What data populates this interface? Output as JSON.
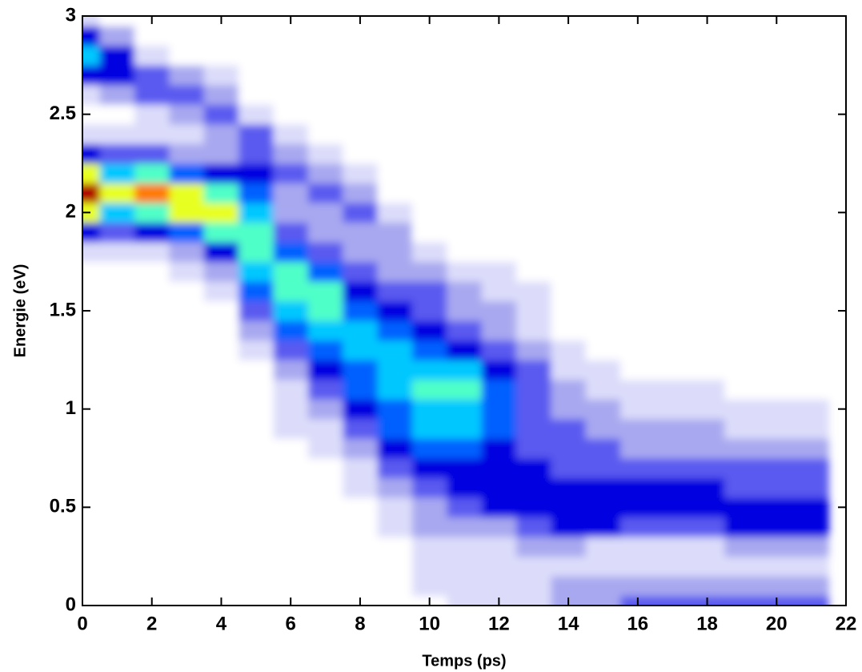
{
  "chart_data": {
    "type": "contour",
    "xlabel": "Temps (ps)",
    "ylabel": "Energie (eV)",
    "xlim": [
      0,
      22
    ],
    "xticks": [
      0,
      2,
      4,
      6,
      8,
      10,
      12,
      14,
      16,
      18,
      20,
      22
    ],
    "ylim": [
      0,
      3
    ],
    "yticks": [
      0,
      0.5,
      1,
      1.5,
      2,
      2.5,
      3
    ],
    "colorscale": [
      "#ffffff",
      "#dcdcfa",
      "#a8a8f0",
      "#5a5af0",
      "#0000e0",
      "#0060ff",
      "#00c8ff",
      "#50ffc8",
      "#e8ff20",
      "#ff7a00",
      "#b00000"
    ],
    "x": [
      0,
      1,
      2,
      3,
      4,
      5,
      6,
      7,
      8,
      9,
      10,
      11,
      12,
      13,
      14,
      15,
      16,
      17,
      18,
      19,
      20,
      21
    ],
    "y": [
      0,
      0.1,
      0.2,
      0.3,
      0.4,
      0.5,
      0.6,
      0.7,
      0.8,
      0.9,
      1,
      1.1,
      1.2,
      1.3,
      1.4,
      1.5,
      1.6,
      1.7,
      1.8,
      1.9,
      2,
      2.1,
      2.2,
      2.3,
      2.4,
      2.5,
      2.6,
      2.7,
      2.8,
      2.9,
      3
    ],
    "z": [
      [
        0,
        0,
        0,
        0,
        0,
        0,
        0,
        0,
        0,
        0,
        0,
        0,
        0,
        0,
        0,
        0,
        0,
        0,
        1,
        4,
        8,
        10,
        8,
        4,
        1,
        0,
        1,
        4,
        6,
        4,
        1
      ],
      [
        0,
        0,
        0,
        0,
        0,
        0,
        0,
        0,
        0,
        0,
        0,
        0,
        0,
        0,
        0,
        0,
        0,
        0,
        1,
        3,
        6,
        8,
        6,
        3,
        1,
        0,
        2,
        4,
        4,
        2,
        0
      ],
      [
        0,
        0,
        0,
        0,
        0,
        0,
        0,
        0,
        0,
        0,
        0,
        0,
        0,
        0,
        0,
        0,
        0,
        0,
        1,
        4,
        7,
        9,
        7,
        3,
        1,
        1,
        3,
        3,
        1,
        0,
        0
      ],
      [
        0,
        0,
        0,
        0,
        0,
        0,
        0,
        0,
        0,
        0,
        0,
        0,
        0,
        0,
        0,
        0,
        0,
        1,
        2,
        5,
        8,
        8,
        5,
        2,
        1,
        2,
        3,
        2,
        0,
        0,
        0
      ],
      [
        0,
        0,
        0,
        0,
        0,
        0,
        0,
        0,
        0,
        0,
        0,
        0,
        0,
        0,
        0,
        0,
        1,
        2,
        4,
        7,
        8,
        7,
        4,
        2,
        2,
        3,
        2,
        1,
        0,
        0,
        0
      ],
      [
        0,
        0,
        0,
        0,
        0,
        0,
        0,
        0,
        0,
        0,
        0,
        0,
        0,
        1,
        2,
        3,
        5,
        6,
        7,
        7,
        6,
        5,
        4,
        3,
        3,
        1,
        0,
        0,
        0,
        0,
        0
      ],
      [
        0,
        0,
        0,
        0,
        0,
        0,
        0,
        0,
        0,
        1,
        1,
        1,
        2,
        3,
        5,
        6,
        7,
        7,
        5,
        3,
        2,
        2,
        3,
        2,
        1,
        0,
        0,
        0,
        0,
        0,
        0
      ],
      [
        0,
        0,
        0,
        0,
        0,
        0,
        0,
        0,
        1,
        1,
        2,
        3,
        4,
        5,
        6,
        7,
        7,
        5,
        3,
        2,
        2,
        3,
        2,
        1,
        0,
        0,
        0,
        0,
        0,
        0,
        0
      ],
      [
        0,
        0,
        0,
        0,
        0,
        0,
        1,
        1,
        2,
        3,
        4,
        5,
        5,
        6,
        6,
        5,
        4,
        3,
        2,
        2,
        3,
        2,
        1,
        0,
        0,
        0,
        0,
        0,
        0,
        0,
        0
      ],
      [
        0,
        0,
        0,
        0,
        1,
        1,
        2,
        3,
        4,
        5,
        5,
        6,
        6,
        6,
        5,
        4,
        3,
        2,
        2,
        2,
        1,
        0,
        0,
        0,
        0,
        0,
        0,
        0,
        0,
        0,
        0
      ],
      [
        0,
        1,
        1,
        1,
        2,
        2,
        3,
        4,
        5,
        6,
        6,
        7,
        6,
        5,
        4,
        3,
        3,
        2,
        1,
        0,
        0,
        0,
        0,
        0,
        0,
        0,
        0,
        0,
        0,
        0,
        0
      ],
      [
        1,
        1,
        1,
        1,
        2,
        3,
        4,
        4,
        5,
        6,
        6,
        7,
        6,
        4,
        3,
        2,
        2,
        1,
        0,
        0,
        0,
        0,
        0,
        0,
        0,
        0,
        0,
        0,
        0,
        0,
        0
      ],
      [
        1,
        1,
        1,
        1,
        2,
        4,
        4,
        4,
        4,
        5,
        5,
        5,
        4,
        3,
        2,
        2,
        1,
        1,
        0,
        0,
        0,
        0,
        0,
        0,
        0,
        0,
        0,
        0,
        0,
        0,
        0
      ],
      [
        1,
        1,
        1,
        2,
        3,
        4,
        4,
        4,
        3,
        3,
        3,
        3,
        3,
        2,
        1,
        1,
        1,
        0,
        0,
        0,
        0,
        0,
        0,
        0,
        0,
        0,
        0,
        0,
        0,
        0,
        0
      ],
      [
        2,
        2,
        1,
        2,
        4,
        4,
        4,
        3,
        3,
        3,
        2,
        2,
        1,
        1,
        0,
        0,
        0,
        0,
        0,
        0,
        0,
        0,
        0,
        0,
        0,
        0,
        0,
        0,
        0,
        0,
        0
      ],
      [
        2,
        2,
        1,
        1,
        4,
        4,
        4,
        3,
        3,
        2,
        2,
        1,
        1,
        0,
        0,
        0,
        0,
        0,
        0,
        0,
        0,
        0,
        0,
        0,
        0,
        0,
        0,
        0,
        0,
        0,
        0
      ],
      [
        3,
        2,
        1,
        1,
        3,
        4,
        4,
        3,
        2,
        2,
        1,
        1,
        0,
        0,
        0,
        0,
        0,
        0,
        0,
        0,
        0,
        0,
        0,
        0,
        0,
        0,
        0,
        0,
        0,
        0,
        0
      ],
      [
        3,
        2,
        1,
        1,
        3,
        4,
        4,
        3,
        2,
        2,
        1,
        1,
        0,
        0,
        0,
        0,
        0,
        0,
        0,
        0,
        0,
        0,
        0,
        0,
        0,
        0,
        0,
        0,
        0,
        0,
        0
      ],
      [
        3,
        2,
        1,
        1,
        3,
        4,
        4,
        3,
        2,
        2,
        1,
        1,
        0,
        0,
        0,
        0,
        0,
        0,
        0,
        0,
        0,
        0,
        0,
        0,
        0,
        0,
        0,
        0,
        0,
        0,
        0
      ],
      [
        3,
        2,
        1,
        2,
        4,
        4,
        3,
        3,
        2,
        1,
        1,
        0,
        0,
        0,
        0,
        0,
        0,
        0,
        0,
        0,
        0,
        0,
        0,
        0,
        0,
        0,
        0,
        0,
        0,
        0,
        0
      ],
      [
        3,
        2,
        1,
        2,
        4,
        4,
        3,
        3,
        2,
        1,
        1,
        0,
        0,
        0,
        0,
        0,
        0,
        0,
        0,
        0,
        0,
        0,
        0,
        0,
        0,
        0,
        0,
        0,
        0,
        0,
        0
      ],
      [
        3,
        2,
        1,
        2,
        4,
        4,
        3,
        3,
        2,
        1,
        1,
        0,
        0,
        0,
        0,
        0,
        0,
        0,
        0,
        0,
        0,
        0,
        0,
        0,
        0,
        0,
        0,
        0,
        0,
        0,
        0
      ]
    ]
  }
}
